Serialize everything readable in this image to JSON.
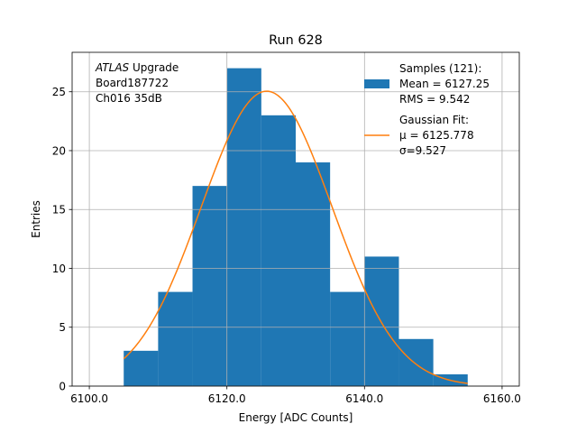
{
  "chart_data": {
    "type": "bar",
    "title": "Run 628",
    "xlabel": "Energy [ADC Counts]",
    "ylabel": "Entries",
    "xlim": [
      6097.5,
      6162.5
    ],
    "ylim": [
      0,
      28.35
    ],
    "grid": true,
    "x_ticks": [
      {
        "value": 6100,
        "label": "6100.0"
      },
      {
        "value": 6120,
        "label": "6120.0"
      },
      {
        "value": 6140,
        "label": "6140.0"
      },
      {
        "value": 6160,
        "label": "6160.0"
      }
    ],
    "y_ticks": [
      {
        "value": 0,
        "label": "0"
      },
      {
        "value": 5,
        "label": "5"
      },
      {
        "value": 10,
        "label": "10"
      },
      {
        "value": 15,
        "label": "15"
      },
      {
        "value": 20,
        "label": "20"
      },
      {
        "value": 25,
        "label": "25"
      }
    ],
    "histogram": {
      "bin_edges": [
        6105,
        6110,
        6115,
        6120,
        6125,
        6130,
        6135,
        6140,
        6145,
        6150,
        6155
      ],
      "counts": [
        3,
        8,
        17,
        27,
        23,
        19,
        8,
        11,
        4,
        1
      ],
      "color": "#1f77b4"
    },
    "fit": {
      "type": "gaussian",
      "mu": 6125.778,
      "sigma": 9.527,
      "peak": 25.05,
      "x_range": [
        6105,
        6155
      ],
      "color": "#ff7f0e"
    },
    "annotation": {
      "lines": [
        {
          "italic": "ATLAS",
          "text": " Upgrade"
        },
        {
          "italic": "",
          "text": " Board187722"
        },
        {
          "italic": "",
          "text": " Ch016 35dB"
        }
      ]
    },
    "legend": {
      "placement": "top-right",
      "entries": [
        {
          "marker": "patch",
          "lines": [
            "Samples (121):",
            " Mean = 6127.25",
            " RMS = 9.542"
          ]
        },
        {
          "marker": "line",
          "lines": [
            "Gaussian Fit:",
            " μ = 6125.778",
            " σ=9.527"
          ]
        }
      ]
    }
  }
}
